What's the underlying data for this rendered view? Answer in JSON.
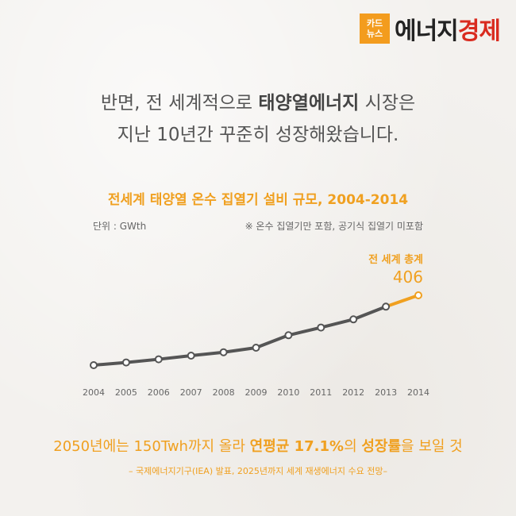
{
  "logo": {
    "box_top": "카드",
    "box_bottom": "뉴스",
    "text_main": "에너지",
    "text_accent": "경제"
  },
  "headline": {
    "line1_pre": "반면, 전 세계적으로 ",
    "line1_bold": "태양열에너지",
    "line1_post": " 시장은",
    "line2": "지난 10년간 꾸준히 성장해왔습니다."
  },
  "chart_data": {
    "type": "line",
    "title": "전세계 태양열 온수 집열기 설비 규모, 2004-2014",
    "unit_label": "단위 : GWth",
    "note": "※ 온수 집열기만 포함, 공기식 집열기 미포함",
    "x": [
      "2004",
      "2005",
      "2006",
      "2007",
      "2008",
      "2009",
      "2010",
      "2011",
      "2012",
      "2013",
      "2014"
    ],
    "values": [
      98,
      110,
      124,
      140,
      155,
      175,
      230,
      264,
      300,
      356,
      406
    ],
    "ylim": [
      0,
      500
    ],
    "grid": false,
    "callout_label": "전 세계 총계",
    "callout_value": "406",
    "colors": {
      "line": "#555555",
      "highlight": "#f0a020",
      "marker_fill": "#ffffff"
    }
  },
  "bottom": {
    "pre": "2050년에는 150Twh까지 올라 ",
    "bold1": "연평균 17.1%",
    "mid": "의 ",
    "bold2": "성장률",
    "post": "을 보일 것"
  },
  "source": "– 국제에너지기구(IEA) 발표, 2025년까지 세계 재생에너지 수요 전망–"
}
